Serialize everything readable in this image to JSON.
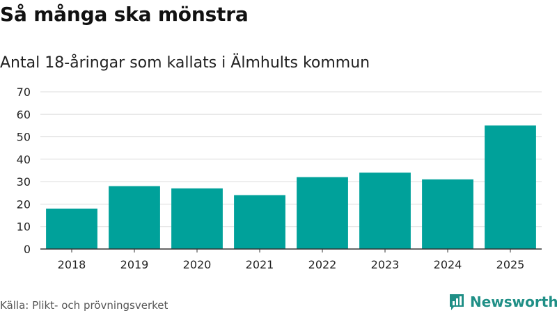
{
  "title": "Så många ska mönstra",
  "subtitle": "Antal 18-åringar som kallats i Älmhults kommun",
  "source": "Källa: Plikt- och prövningsverket",
  "logo_text": "Newsworthy",
  "colors": {
    "bar": "#00a19a",
    "grid": "#dddddd",
    "axis": "#333333",
    "logo": "#1f8f86"
  },
  "chart_data": {
    "type": "bar",
    "categories": [
      "2018",
      "2019",
      "2020",
      "2021",
      "2022",
      "2023",
      "2024",
      "2025"
    ],
    "values": [
      18,
      28,
      27,
      24,
      32,
      34,
      31,
      55
    ],
    "ylim": [
      0,
      70
    ],
    "yticks": [
      0,
      10,
      20,
      30,
      40,
      50,
      60,
      70
    ],
    "grid": true,
    "legend": "none",
    "xlabel": "",
    "ylabel": ""
  }
}
